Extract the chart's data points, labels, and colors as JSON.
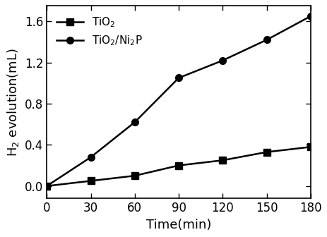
{
  "time": [
    0,
    30,
    60,
    90,
    120,
    150,
    180
  ],
  "tio2_ni2p": [
    0.0,
    0.28,
    0.62,
    1.05,
    1.22,
    1.42,
    1.65
  ],
  "tio2": [
    0.0,
    0.05,
    0.1,
    0.2,
    0.25,
    0.33,
    0.38
  ],
  "tio2_ni2p_label": "TiO$_2$/Ni$_2$P",
  "tio2_label": "TiO$_2$",
  "xlabel": "Time(min)",
  "ylabel": "H$_2$ evolution(mL)",
  "xlim": [
    0,
    180
  ],
  "ylim": [
    -0.12,
    1.75
  ],
  "xticks": [
    0,
    30,
    60,
    90,
    120,
    150,
    180
  ],
  "yticks": [
    0.0,
    0.4,
    0.8,
    1.2,
    1.6
  ],
  "line_color": "#000000",
  "marker_square": "s",
  "marker_circle": "o",
  "markersize": 7,
  "linewidth": 1.8,
  "label_fontsize": 13,
  "tick_fontsize": 12,
  "legend_fontsize": 11
}
